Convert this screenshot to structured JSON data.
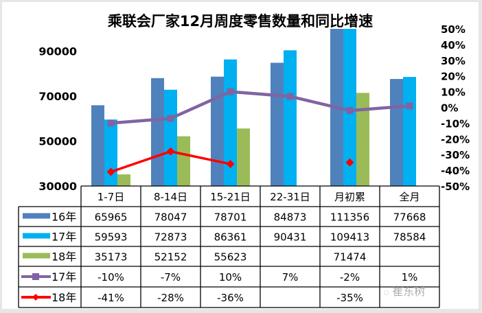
{
  "chart_data": {
    "type": "bar",
    "title": "乘联会厂家12月周度零售数量和同比增速",
    "categories": [
      "1-7日",
      "8-14日",
      "15-21日",
      "22-31日",
      "月初累",
      "全月"
    ],
    "left_axis": {
      "ylim": [
        30000,
        100000
      ],
      "ticks": [
        "30000",
        "50000",
        "70000",
        "90000"
      ],
      "tick_values": [
        30000,
        50000,
        70000,
        90000
      ]
    },
    "right_axis": {
      "ylim": [
        -0.5,
        0.5
      ],
      "ticks": [
        "50%",
        "40%",
        "30%",
        "20%",
        "10%",
        "0%",
        "-10%",
        "-20%",
        "-30%",
        "-40%",
        "-50%"
      ],
      "tick_values": [
        0.5,
        0.4,
        0.3,
        0.2,
        0.1,
        0,
        -0.1,
        -0.2,
        -0.3,
        -0.4,
        -0.5
      ]
    },
    "grid": false,
    "legend": "data-table",
    "bar_series": [
      {
        "name": "16年",
        "color": "#4f81bd",
        "values": [
          65965,
          78047,
          78701,
          84873,
          111356,
          77668
        ],
        "labels": [
          "65965",
          "78047",
          "78701",
          "84873",
          "111356",
          "77668"
        ]
      },
      {
        "name": "17年",
        "color": "#00b0f0",
        "values": [
          59593,
          72873,
          86361,
          90431,
          109413,
          78584
        ],
        "labels": [
          "59593",
          "72873",
          "86361",
          "90431",
          "109413",
          "78584"
        ]
      },
      {
        "name": "18年",
        "color": "#9bbb59",
        "values": [
          35173,
          52152,
          55623,
          null,
          71474,
          null
        ],
        "labels": [
          "35173",
          "52152",
          "55623",
          "",
          "71474",
          ""
        ]
      }
    ],
    "line_series": [
      {
        "name": "17年",
        "color": "#8064a2",
        "marker": "square",
        "values": [
          -0.1,
          -0.07,
          0.1,
          0.07,
          -0.02,
          0.01
        ],
        "labels": [
          "-10%",
          "-7%",
          "10%",
          "7%",
          "-2%",
          "1%"
        ],
        "connect_through": true
      },
      {
        "name": "18年",
        "color": "#ff0000",
        "marker": "diamond",
        "values": [
          -0.41,
          -0.28,
          -0.36,
          null,
          -0.35,
          null
        ],
        "labels": [
          "-41%",
          "-28%",
          "-36%",
          "",
          "-35%",
          ""
        ]
      }
    ]
  },
  "watermark": {
    "text": "崔东树",
    "icon": "wechat-icon"
  }
}
